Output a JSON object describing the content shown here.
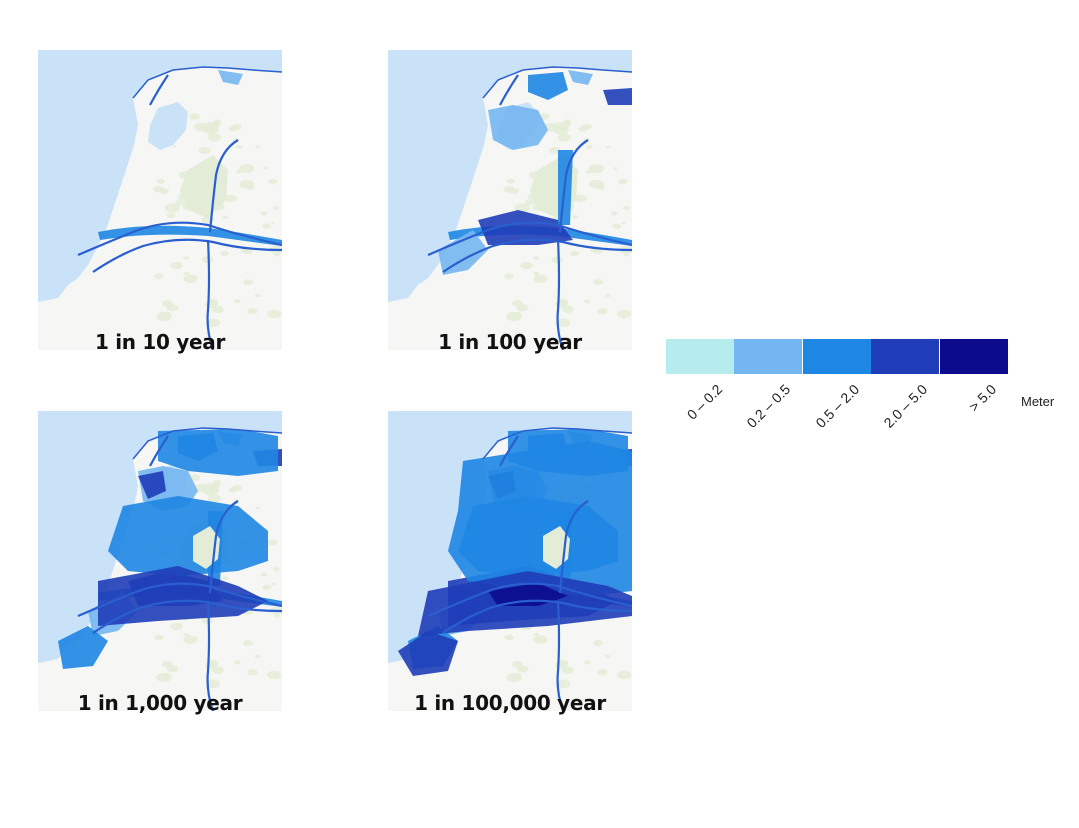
{
  "panels": [
    {
      "caption": "1 in 10 year",
      "severity": 1
    },
    {
      "caption": "1 in 100 year",
      "severity": 2
    },
    {
      "caption": "1 in 1,000 year",
      "severity": 3
    },
    {
      "caption": "1 in 100,000 year",
      "severity": 4
    }
  ],
  "legend": {
    "unit": "Meter",
    "classes": [
      {
        "label": "0 – 0.2",
        "color": "#b6ecee"
      },
      {
        "label": "0.2 – 0.5",
        "color": "#74b6f0"
      },
      {
        "label": "0.5 – 2.0",
        "color": "#1e86e3"
      },
      {
        "label": "2.0 – 5.0",
        "color": "#1f3db8"
      },
      {
        "label": "> 5.0",
        "color": "#0b0b8c"
      }
    ]
  },
  "colors": {
    "sea": "#c9e2f8",
    "land": "#f6f7f4",
    "agri": "#e3ecd6",
    "river": "#2a5fd0"
  }
}
